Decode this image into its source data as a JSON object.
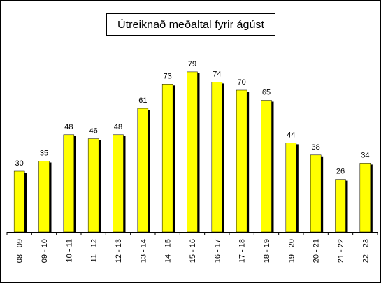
{
  "chart_data": {
    "type": "bar",
    "title": "Útreiknað meðaltal fyrir ágúst",
    "categories": [
      "08 - 09",
      "09 - 10",
      "10 - 11",
      "11 - 12",
      "12 - 13",
      "13 - 14",
      "14 - 15",
      "15 - 16",
      "16 - 17",
      "17 - 18",
      "18 - 19",
      "19 - 20",
      "20 - 21",
      "21 - 22",
      "22 - 23"
    ],
    "values": [
      30,
      35,
      48,
      46,
      48,
      61,
      73,
      79,
      74,
      70,
      65,
      44,
      38,
      26,
      34
    ],
    "color": "#ffff00",
    "ylim": [
      0,
      90
    ]
  }
}
